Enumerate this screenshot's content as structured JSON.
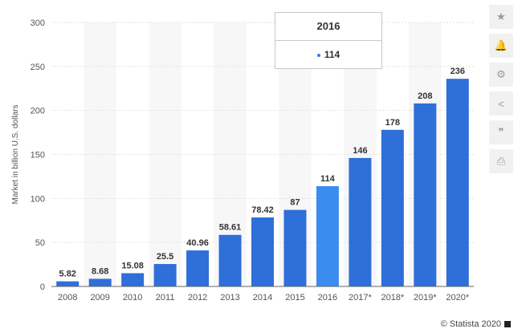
{
  "chart_data": {
    "type": "bar",
    "categories": [
      "2008",
      "2009",
      "2010",
      "2011",
      "2012",
      "2013",
      "2014",
      "2015",
      "2016",
      "2017*",
      "2018*",
      "2019*",
      "2020*"
    ],
    "values": [
      5.82,
      8.68,
      15.08,
      25.5,
      40.96,
      58.61,
      78.42,
      87,
      114,
      146,
      178,
      208,
      236
    ],
    "value_labels": [
      "5.82",
      "8.68",
      "15.08",
      "25.5",
      "40.96",
      "58.61",
      "78.42",
      "87",
      "114",
      "146",
      "178",
      "208",
      "236"
    ],
    "ylabel": "Market in billion U.S. dollars",
    "ylim": [
      0,
      300
    ],
    "yticks": [
      0,
      50,
      100,
      150,
      200,
      250,
      300
    ],
    "grid": true,
    "bar_color": "#2e6fd9",
    "highlight_color": "#3c8cf0",
    "highlight_index": 8
  },
  "tooltip": {
    "title": "2016",
    "value": "114",
    "dot_color": "#2e7de9"
  },
  "toolbar": [
    {
      "icon": "star-icon",
      "glyph": "★"
    },
    {
      "icon": "bell-icon",
      "glyph": "🔔"
    },
    {
      "icon": "gear-icon",
      "glyph": "⚙"
    },
    {
      "icon": "share-icon",
      "glyph": "<"
    },
    {
      "icon": "quote-icon",
      "glyph": "❞"
    },
    {
      "icon": "print-icon",
      "glyph": "⎙"
    }
  ],
  "credit": "© Statista 2020"
}
